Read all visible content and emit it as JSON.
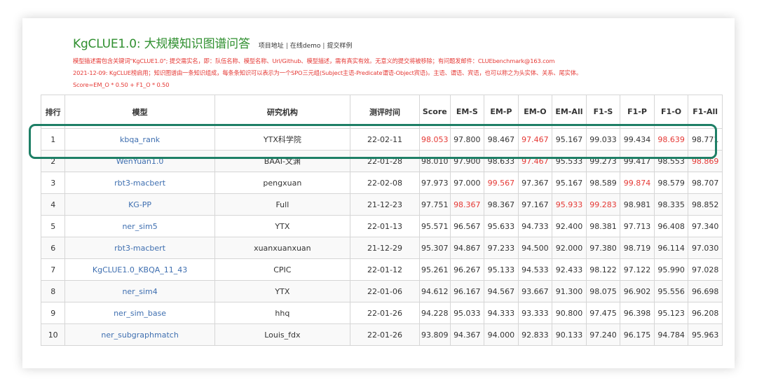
{
  "header": {
    "title": "KgCLUE1.0: 大规模知识图谱问答",
    "links": [
      "项目地址",
      "在线demo",
      "提交样例"
    ],
    "link_separator": "|",
    "notes": [
      "模型描述需包含关键词\"KgCLUE1.0\"; 提交需实名，即：队伍名称、模型名称、Url/Github、模型描述，需有真实有效。无意义的提交将被移除；有问题发邮件：CLUEbenchmark@163.com",
      "2021-12-09: KgCLUE榜启用；知识图谱由一条知识组成，每条条知识可以表示为一个SPO三元组(Subject主语-Predicate谓语-Object宾语)。主语、谓语、宾语，也可以称之为头实体、关系、尾实体。",
      "Score=EM_O * 0.50 + F1_O * 0.50"
    ],
    "note_color": "#e53935",
    "title_color": "#2f8f2f"
  },
  "table": {
    "columns": [
      "排行",
      "模型",
      "研究机构",
      "测评时间",
      "Score",
      "EM-S",
      "EM-P",
      "EM-O",
      "EM-All",
      "F1-S",
      "F1-P",
      "F1-O",
      "F1-All"
    ],
    "rows": [
      {
        "rank": "1",
        "model": "kbqa_rank",
        "org": "YTX科学院",
        "date": "22-02-11",
        "scores": [
          "98.053",
          "97.800",
          "98.467",
          "97.467",
          "95.167",
          "99.033",
          "99.434",
          "98.639",
          "98.771"
        ],
        "red": [
          0,
          3,
          7
        ]
      },
      {
        "rank": "2",
        "model": "WenYuan1.0",
        "org": "BAAI-文渊",
        "date": "22-01-28",
        "scores": [
          "98.010",
          "97.900",
          "98.633",
          "97.467",
          "95.533",
          "99.273",
          "99.417",
          "98.553",
          "98.869"
        ],
        "red": [
          3,
          8
        ]
      },
      {
        "rank": "3",
        "model": "rbt3-macbert",
        "org": "pengxuan",
        "date": "22-02-08",
        "scores": [
          "97.973",
          "97.000",
          "99.567",
          "97.367",
          "95.167",
          "98.589",
          "99.874",
          "98.579",
          "98.707"
        ],
        "red": [
          2,
          6
        ]
      },
      {
        "rank": "4",
        "model": "KG-PP",
        "org": "Full",
        "date": "21-12-23",
        "scores": [
          "97.751",
          "98.367",
          "98.367",
          "97.167",
          "95.933",
          "99.283",
          "98.981",
          "98.335",
          "98.852"
        ],
        "red": [
          1,
          4,
          5
        ]
      },
      {
        "rank": "5",
        "model": "ner_sim5",
        "org": "YTX",
        "date": "22-01-13",
        "scores": [
          "95.571",
          "96.567",
          "95.633",
          "94.733",
          "92.400",
          "98.381",
          "97.713",
          "96.408",
          "97.340"
        ],
        "red": []
      },
      {
        "rank": "6",
        "model": "rbt3-macbert",
        "org": "xuanxuanxuan",
        "date": "21-12-29",
        "scores": [
          "95.307",
          "94.867",
          "97.233",
          "94.500",
          "92.000",
          "97.380",
          "98.719",
          "96.114",
          "97.030"
        ],
        "red": []
      },
      {
        "rank": "7",
        "model": "KgCLUE1.0_KBQA_11_43",
        "org": "CPIC",
        "date": "22-01-12",
        "scores": [
          "95.261",
          "96.267",
          "95.133",
          "94.533",
          "92.433",
          "98.122",
          "97.122",
          "95.990",
          "97.028"
        ],
        "red": []
      },
      {
        "rank": "8",
        "model": "ner_sim4",
        "org": "YTX",
        "date": "22-01-06",
        "scores": [
          "94.612",
          "96.167",
          "94.567",
          "93.667",
          "91.300",
          "98.075",
          "96.902",
          "95.556",
          "96.698"
        ],
        "red": []
      },
      {
        "rank": "9",
        "model": "ner_sim_base",
        "org": "hhq",
        "date": "22-01-26",
        "scores": [
          "94.228",
          "95.033",
          "94.333",
          "93.333",
          "90.800",
          "97.475",
          "96.398",
          "95.123",
          "96.208"
        ],
        "red": []
      },
      {
        "rank": "10",
        "model": "ner_subgraphmatch",
        "org": "Louis_fdx",
        "date": "22-01-26",
        "scores": [
          "93.809",
          "94.367",
          "94.000",
          "92.833",
          "90.133",
          "97.240",
          "96.175",
          "94.784",
          "95.963"
        ],
        "red": []
      }
    ],
    "model_color": "#3f6fb0",
    "highlight_color": "#1e7f66"
  }
}
